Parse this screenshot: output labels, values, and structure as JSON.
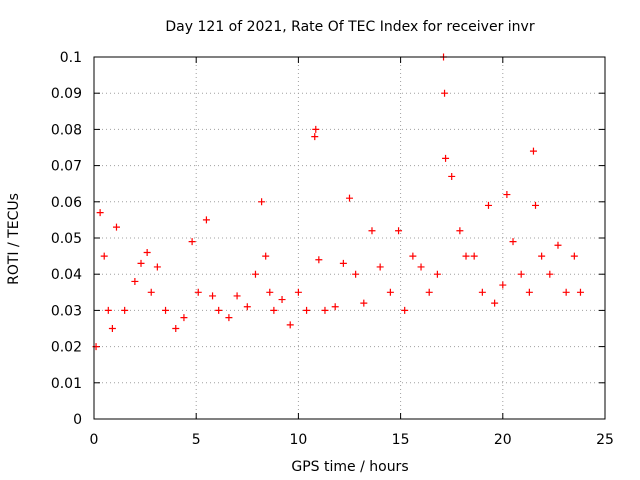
{
  "chart_data": {
    "type": "scatter",
    "title": "Day 121 of 2021, Rate Of TEC Index for receiver invr",
    "xlabel": "GPS time / hours",
    "ylabel": "ROTI / TECUs",
    "xlim": [
      0,
      25
    ],
    "ylim": [
      0,
      0.1
    ],
    "xticks": [
      "0",
      "5",
      "10",
      "15",
      "20",
      "25"
    ],
    "yticks": [
      "0",
      "0.01",
      "0.02",
      "0.03",
      "0.04",
      "0.05",
      "0.06",
      "0.07",
      "0.08",
      "0.09",
      "0.1"
    ],
    "grid": true,
    "marker": "+",
    "series": [
      {
        "name": "ROTI",
        "color": "#ff0000",
        "x": [
          0.1,
          0.3,
          0.5,
          0.7,
          0.9,
          1.1,
          1.5,
          2.0,
          2.3,
          2.6,
          2.8,
          3.1,
          3.5,
          4.0,
          4.4,
          4.8,
          5.1,
          5.5,
          5.8,
          6.1,
          6.6,
          7.0,
          7.5,
          7.9,
          8.2,
          8.4,
          8.6,
          8.8,
          9.2,
          9.6,
          10.0,
          10.4,
          10.8,
          10.85,
          11.0,
          11.3,
          11.8,
          12.2,
          12.5,
          12.8,
          13.2,
          13.6,
          14.0,
          14.5,
          14.9,
          15.2,
          15.6,
          16.0,
          16.4,
          16.8,
          17.1,
          17.15,
          17.2,
          17.5,
          17.9,
          18.2,
          18.6,
          19.0,
          19.3,
          19.6,
          20.0,
          20.2,
          20.5,
          20.9,
          21.3,
          21.5,
          21.6,
          21.9,
          22.3,
          22.7,
          23.1,
          23.5,
          23.8
        ],
        "y": [
          0.02,
          0.057,
          0.045,
          0.03,
          0.025,
          0.053,
          0.03,
          0.038,
          0.043,
          0.046,
          0.035,
          0.042,
          0.03,
          0.025,
          0.028,
          0.049,
          0.035,
          0.055,
          0.034,
          0.03,
          0.028,
          0.034,
          0.031,
          0.04,
          0.06,
          0.045,
          0.035,
          0.03,
          0.033,
          0.026,
          0.035,
          0.03,
          0.078,
          0.08,
          0.044,
          0.03,
          0.031,
          0.043,
          0.061,
          0.04,
          0.032,
          0.052,
          0.042,
          0.035,
          0.052,
          0.03,
          0.045,
          0.042,
          0.035,
          0.04,
          0.1,
          0.09,
          0.072,
          0.067,
          0.052,
          0.045,
          0.045,
          0.035,
          0.059,
          0.032,
          0.037,
          0.062,
          0.049,
          0.04,
          0.035,
          0.074,
          0.059,
          0.045,
          0.04,
          0.048,
          0.035,
          0.045,
          0.035
        ]
      }
    ]
  }
}
